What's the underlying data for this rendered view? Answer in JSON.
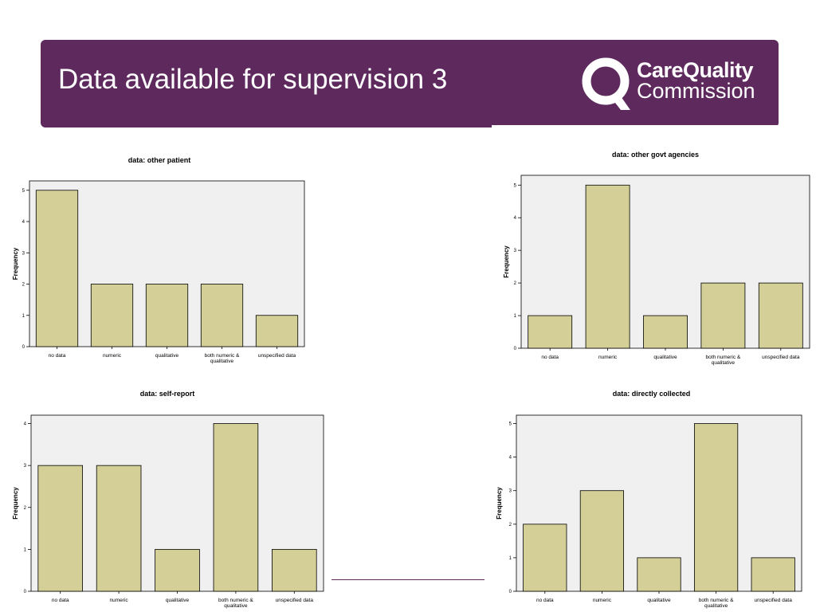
{
  "header": {
    "title": "Data available for supervision 3",
    "logo": {
      "line1": "CareQuality",
      "line2": "Commission",
      "icon": "cqc-q-logo-icon"
    }
  },
  "colors": {
    "banner": "#5e2a5e",
    "bar_fill": "#d3cf96",
    "plot_bg": "#f0f0f0"
  },
  "chart_data": [
    {
      "type": "bar",
      "title": "data: other patient",
      "ylabel": "Frequency",
      "categories": [
        "no data",
        "numeric",
        "qualitative",
        "both numeric & qualitative",
        "unspecified data"
      ],
      "values": [
        5,
        2,
        2,
        2,
        1
      ],
      "ylim": [
        0,
        5.3
      ],
      "yticks": [
        0,
        1,
        2,
        3,
        4,
        5
      ]
    },
    {
      "type": "bar",
      "title": "data: other govt agencies",
      "ylabel": "Frequency",
      "categories": [
        "no data",
        "numeric",
        "qualitative",
        "both numeric & qualitative",
        "unspecified data"
      ],
      "values": [
        1,
        5,
        1,
        2,
        2
      ],
      "ylim": [
        0,
        5.3
      ],
      "yticks": [
        0,
        1,
        2,
        3,
        4,
        5
      ]
    },
    {
      "type": "bar",
      "title": "data: self-report",
      "ylabel": "Frequency",
      "categories": [
        "no data",
        "numeric",
        "qualitative",
        "both numeric & qualitative",
        "unspecified data"
      ],
      "values": [
        3,
        3,
        1,
        4,
        1
      ],
      "ylim": [
        0,
        4.2
      ],
      "yticks": [
        0,
        1,
        2,
        3,
        4
      ]
    },
    {
      "type": "bar",
      "title": "data: directly collected",
      "ylabel": "Frequency",
      "categories": [
        "no data",
        "numeric",
        "qualitative",
        "both numeric & qualitative",
        "unspecified data"
      ],
      "values": [
        2,
        3,
        1,
        5,
        1
      ],
      "ylim": [
        0,
        5.25
      ],
      "yticks": [
        0,
        1,
        2,
        3,
        4,
        5
      ]
    }
  ]
}
